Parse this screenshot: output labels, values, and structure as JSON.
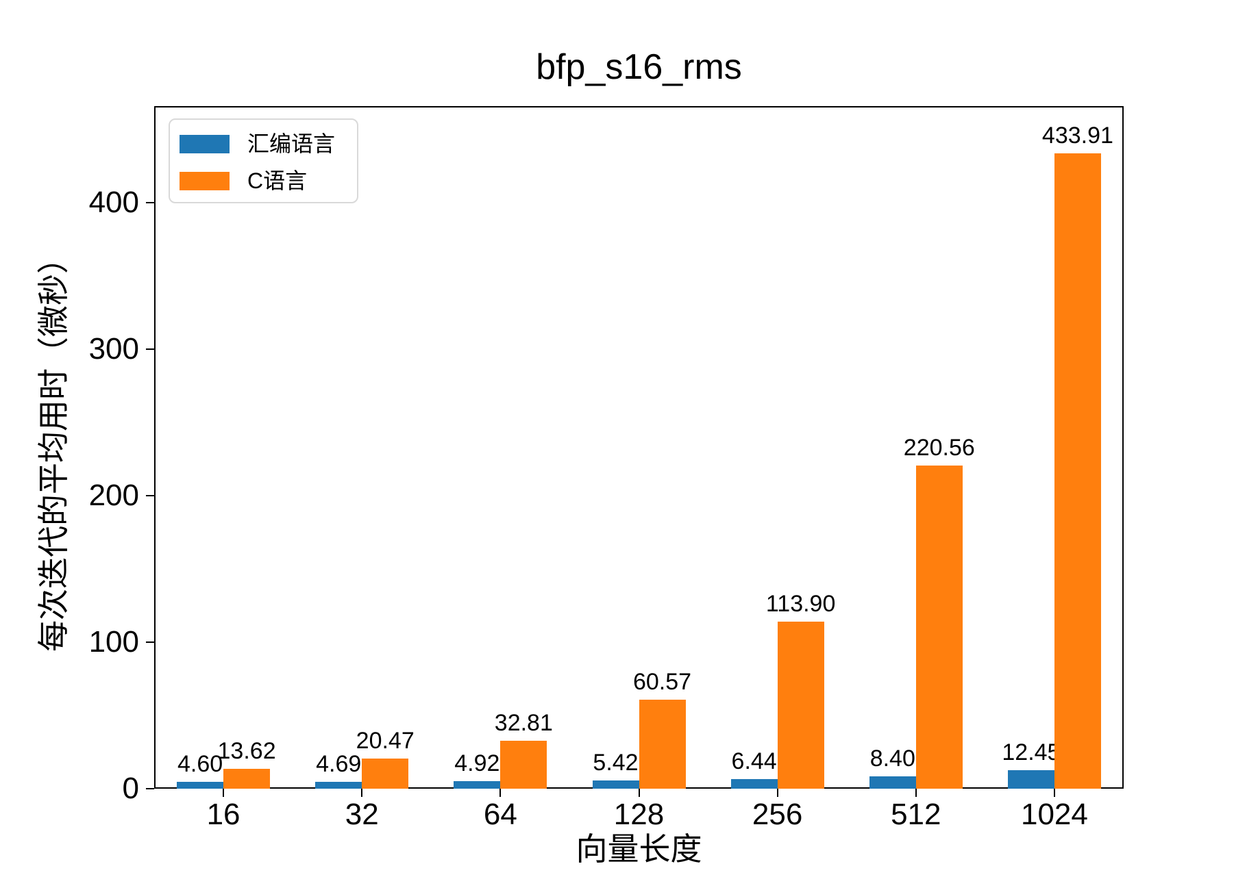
{
  "title": "bfp_s16_rms",
  "axes": {
    "x_label": "向量长度",
    "y_label": "每次迭代的平均用时（微秒）"
  },
  "legend": {
    "items": [
      {
        "label": "汇编语言",
        "color": "#1f77b4"
      },
      {
        "label": "C语言",
        "color": "#ff7f0e"
      }
    ]
  },
  "chart_data": {
    "type": "bar",
    "title": "bfp_s16_rms",
    "xlabel": "向量长度",
    "ylabel": "每次迭代的平均用时（微秒）",
    "categories": [
      "16",
      "32",
      "64",
      "128",
      "256",
      "512",
      "1024"
    ],
    "series": [
      {
        "name": "汇编语言",
        "color": "#1f77b4",
        "values": [
          4.6,
          4.69,
          4.92,
          5.42,
          6.44,
          8.4,
          12.45
        ],
        "data_labels": [
          "4.60",
          "4.69",
          "4.92",
          "5.42",
          "6.44",
          "8.40",
          "12.45"
        ]
      },
      {
        "name": "C语言",
        "color": "#ff7f0e",
        "values": [
          13.62,
          20.47,
          32.81,
          60.57,
          113.9,
          220.56,
          433.91
        ],
        "data_labels": [
          "13.62",
          "20.47",
          "32.81",
          "60.57",
          "113.90",
          "220.56",
          "433.91"
        ]
      }
    ],
    "ylim": [
      0,
      466
    ],
    "yticks": [
      0,
      100,
      200,
      300,
      400
    ],
    "grid": false,
    "legend_position": "upper left",
    "bar_value_labels_shown": true
  }
}
